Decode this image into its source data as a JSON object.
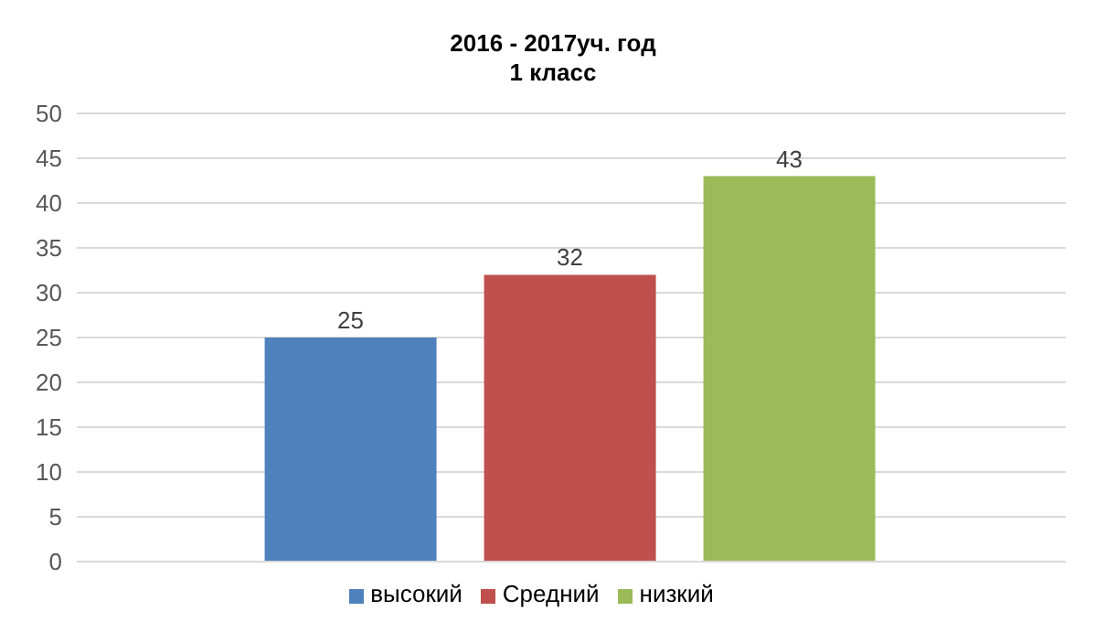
{
  "chart_data": {
    "type": "bar",
    "title": "2016 - 2017уч. год\n1 класс",
    "categories": [
      null
    ],
    "series": [
      {
        "name": "высокий",
        "color": "#4f81bd",
        "values": [
          25
        ]
      },
      {
        "name": "Средний",
        "color": "#c0504d",
        "values": [
          32
        ]
      },
      {
        "name": "низкий",
        "color": "#9bbb59",
        "values": [
          43
        ]
      }
    ],
    "ylim": [
      0,
      50
    ],
    "yticks": [
      0,
      5,
      10,
      15,
      20,
      25,
      30,
      35,
      40,
      45,
      50
    ],
    "grid": "y",
    "legend": "bottom",
    "data_labels": true
  }
}
